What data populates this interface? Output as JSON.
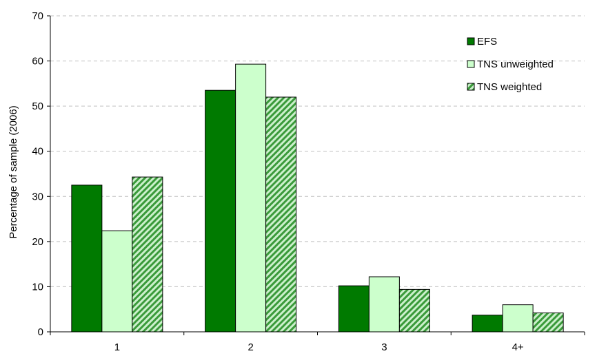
{
  "chart_data": {
    "type": "bar",
    "title": "",
    "xlabel": "",
    "ylabel": "Percentage of sample (2006)",
    "categories": [
      "1",
      "2",
      "3",
      "4+"
    ],
    "ylim": [
      0,
      70
    ],
    "yticks": [
      0,
      10,
      20,
      30,
      40,
      50,
      60,
      70
    ],
    "grid": "horizontal dashed",
    "legend_position": "top-right",
    "series": [
      {
        "name": "EFS",
        "values": [
          32.5,
          53.5,
          10.2,
          3.7
        ],
        "color": "#007a00",
        "pattern": "solid"
      },
      {
        "name": "TNS unweighted",
        "values": [
          22.4,
          59.3,
          12.2,
          6.0
        ],
        "color": "#ccffcc",
        "pattern": "solid"
      },
      {
        "name": "TNS weighted",
        "values": [
          34.3,
          52.0,
          9.4,
          4.2
        ],
        "color": "#3a9a3a",
        "pattern": "diagonal-stripes"
      }
    ]
  }
}
